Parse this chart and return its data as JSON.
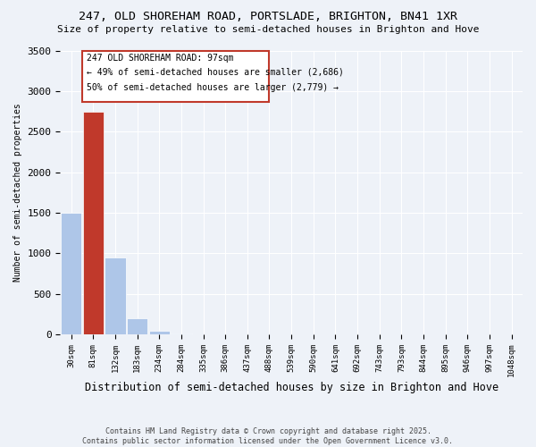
{
  "title1": "247, OLD SHOREHAM ROAD, PORTSLADE, BRIGHTON, BN41 1XR",
  "title2": "Size of property relative to semi-detached houses in Brighton and Hove",
  "xlabel": "Distribution of semi-detached houses by size in Brighton and Hove",
  "ylabel": "Number of semi-detached properties",
  "bin_labels": [
    "30sqm",
    "81sqm",
    "132sqm",
    "183sqm",
    "234sqm",
    "284sqm",
    "335sqm",
    "386sqm",
    "437sqm",
    "488sqm",
    "539sqm",
    "590sqm",
    "641sqm",
    "692sqm",
    "743sqm",
    "793sqm",
    "844sqm",
    "895sqm",
    "946sqm",
    "997sqm",
    "1048sqm"
  ],
  "bar_values": [
    1500,
    2750,
    950,
    200,
    50,
    10,
    5,
    2,
    1,
    0,
    0,
    0,
    0,
    0,
    0,
    0,
    0,
    0,
    0,
    0,
    0
  ],
  "bar_color": "#aec6e8",
  "highlight_color": "#c0392b",
  "highlight_bin": 1,
  "annotation_text1": "247 OLD SHOREHAM ROAD: 97sqm",
  "annotation_text2": "← 49% of semi-detached houses are smaller (2,686)",
  "annotation_text3": "50% of semi-detached houses are larger (2,779) →",
  "footer1": "Contains HM Land Registry data © Crown copyright and database right 2025.",
  "footer2": "Contains public sector information licensed under the Open Government Licence v3.0.",
  "ylim": [
    0,
    3500
  ],
  "background_color": "#eef2f8"
}
